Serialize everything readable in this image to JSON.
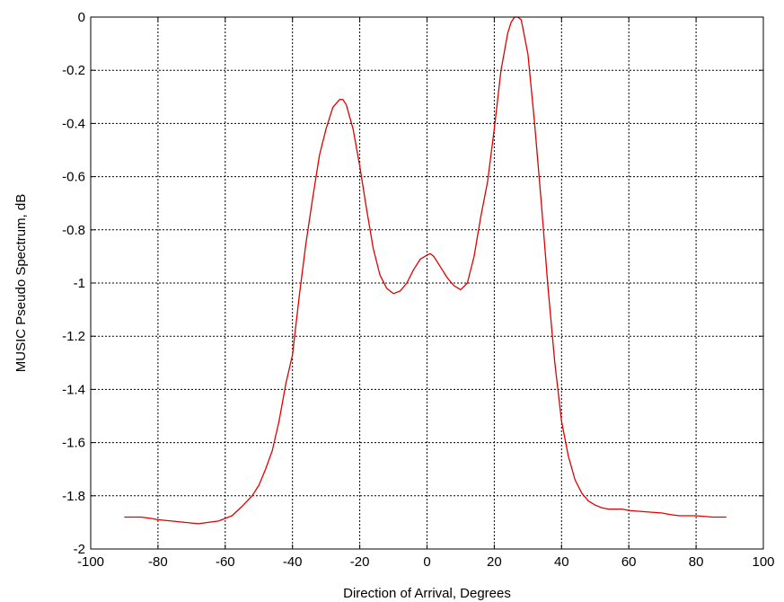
{
  "chart_data": {
    "type": "line",
    "title": "",
    "xlabel": "Direction of Arrival, Degrees",
    "ylabel": "MUSIC Pseudo Spectrum, dB",
    "xlim": [
      -100,
      100
    ],
    "ylim": [
      -2,
      0
    ],
    "x_ticks": [
      -100,
      -80,
      -60,
      -40,
      -20,
      0,
      20,
      40,
      60,
      80,
      100
    ],
    "y_ticks": [
      0,
      -0.2,
      -0.4,
      -0.6,
      -0.8,
      -1,
      -1.2,
      -1.4,
      -1.6,
      -1.8,
      -2
    ],
    "x_tick_labels": [
      "-100",
      "-80",
      "-60",
      "-40",
      "-20",
      "0",
      "20",
      "40",
      "60",
      "80",
      "100"
    ],
    "y_tick_labels": [
      "0",
      "-0.2",
      "-0.4",
      "-0.6",
      "-0.8",
      "-1",
      "-1.2",
      "-1.4",
      "-1.6",
      "-1.8",
      "-2"
    ],
    "grid": true,
    "grid_style": "dotted",
    "series": [
      {
        "color": "#e00000",
        "x": [
          -90,
          -85,
          -82,
          -80,
          -76,
          -72,
          -68,
          -65,
          -62,
          -58,
          -55,
          -52,
          -50,
          -48,
          -46,
          -44,
          -42,
          -40,
          -38,
          -36,
          -34,
          -32,
          -30,
          -28,
          -26,
          -25,
          -24,
          -22,
          -20,
          -18,
          -16,
          -14,
          -12,
          -10,
          -8,
          -6,
          -4,
          -2,
          0,
          1,
          2,
          4,
          6,
          8,
          10,
          12,
          14,
          16,
          18,
          20,
          22,
          24,
          25,
          26,
          27,
          28,
          30,
          32,
          34,
          36,
          38,
          40,
          42,
          44,
          46,
          48,
          50,
          52,
          54,
          56,
          58,
          60,
          65,
          70,
          72,
          75,
          78,
          80,
          85,
          87,
          89
        ],
        "y": [
          -1.88,
          -1.88,
          -1.885,
          -1.89,
          -1.895,
          -1.9,
          -1.905,
          -1.9,
          -1.895,
          -1.875,
          -1.84,
          -1.8,
          -1.76,
          -1.7,
          -1.63,
          -1.52,
          -1.38,
          -1.27,
          -1.05,
          -0.85,
          -0.68,
          -0.52,
          -0.42,
          -0.34,
          -0.31,
          -0.31,
          -0.33,
          -0.42,
          -0.56,
          -0.72,
          -0.87,
          -0.97,
          -1.02,
          -1.04,
          -1.03,
          -1.0,
          -0.95,
          -0.91,
          -0.895,
          -0.89,
          -0.9,
          -0.94,
          -0.98,
          -1.01,
          -1.025,
          -1.0,
          -0.9,
          -0.75,
          -0.62,
          -0.42,
          -0.2,
          -0.06,
          -0.02,
          0.0,
          0.0,
          -0.01,
          -0.14,
          -0.4,
          -0.7,
          -1.02,
          -1.3,
          -1.52,
          -1.65,
          -1.74,
          -1.79,
          -1.82,
          -1.835,
          -1.845,
          -1.85,
          -1.85,
          -1.85,
          -1.855,
          -1.86,
          -1.865,
          -1.87,
          -1.875,
          -1.875,
          -1.875,
          -1.88,
          -1.88,
          -1.88
        ]
      }
    ]
  }
}
